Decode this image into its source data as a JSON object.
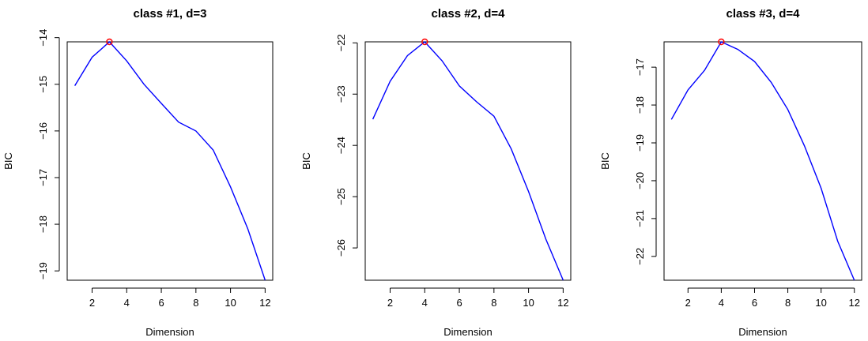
{
  "chart_data": [
    {
      "type": "line",
      "title": "class #1, d=3",
      "xlabel": "Dimension",
      "ylabel": "BIC",
      "xlim": [
        0.56,
        12.44
      ],
      "ylim": [
        -19.2,
        -14.09
      ],
      "xticks": [
        2,
        4,
        6,
        8,
        10,
        12
      ],
      "yticks": [
        -14,
        -15,
        -16,
        -17,
        -18,
        -19
      ],
      "x": [
        1,
        2,
        3,
        4,
        5,
        6,
        7,
        8,
        9,
        10,
        11,
        12
      ],
      "series": [
        {
          "values": [
            -15.03,
            -14.42,
            -14.09,
            -14.5,
            -15.0,
            -15.41,
            -15.81,
            -16.0,
            -16.41,
            -17.2,
            -18.1,
            -19.2
          ]
        }
      ],
      "selected": {
        "x": 3,
        "y": -14.09
      },
      "line_color": "#0000ff",
      "marker_color": "#ff0000"
    },
    {
      "type": "line",
      "title": "class #2, d=4",
      "xlabel": "Dimension",
      "ylabel": "BIC",
      "xlim": [
        0.56,
        12.44
      ],
      "ylim": [
        -26.63,
        -21.98
      ],
      "xticks": [
        2,
        4,
        6,
        8,
        10,
        12
      ],
      "yticks": [
        -22,
        -23,
        -24,
        -25,
        -26
      ],
      "x": [
        1,
        2,
        3,
        4,
        5,
        6,
        7,
        8,
        9,
        10,
        11,
        12
      ],
      "series": [
        {
          "values": [
            -23.49,
            -22.75,
            -22.25,
            -21.98,
            -22.35,
            -22.84,
            -23.15,
            -23.43,
            -24.07,
            -24.9,
            -25.83,
            -26.63
          ]
        }
      ],
      "selected": {
        "x": 4,
        "y": -21.98
      },
      "line_color": "#0000ff",
      "marker_color": "#ff0000"
    },
    {
      "type": "line",
      "title": "class #3, d=4",
      "xlabel": "Dimension",
      "ylabel": "BIC",
      "xlim": [
        0.56,
        12.44
      ],
      "ylim": [
        -22.63,
        -16.33
      ],
      "xticks": [
        2,
        4,
        6,
        8,
        10,
        12
      ],
      "yticks": [
        -17,
        -18,
        -19,
        -20,
        -21,
        -22
      ],
      "x": [
        1,
        2,
        3,
        4,
        5,
        6,
        7,
        8,
        9,
        10,
        11,
        12
      ],
      "series": [
        {
          "values": [
            -18.38,
            -17.6,
            -17.08,
            -16.33,
            -16.53,
            -16.85,
            -17.4,
            -18.12,
            -19.08,
            -20.2,
            -21.6,
            -22.63
          ]
        }
      ],
      "selected": {
        "x": 4,
        "y": -16.33
      },
      "line_color": "#0000ff",
      "marker_color": "#ff0000"
    }
  ]
}
